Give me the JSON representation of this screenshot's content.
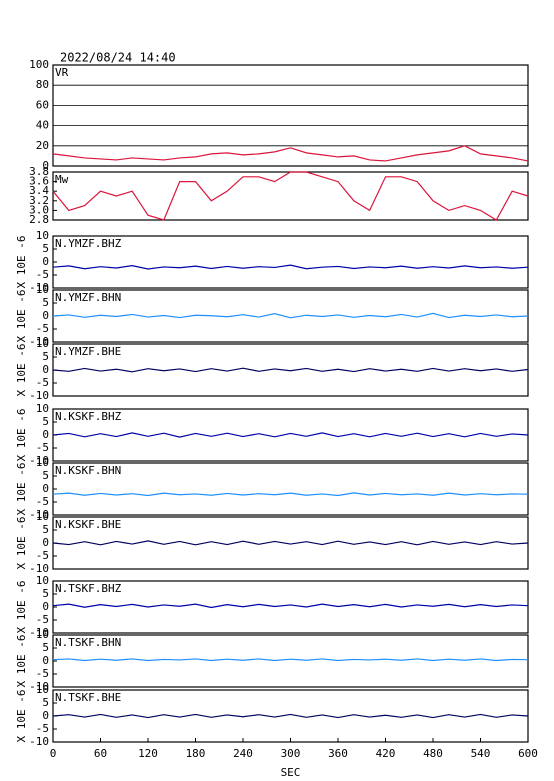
{
  "chart_data": [
    {
      "type": "line",
      "title": "2022/08/24 14:40",
      "x": [
        0,
        20,
        40,
        60,
        80,
        100,
        120,
        140,
        160,
        180,
        200,
        220,
        240,
        260,
        280,
        300,
        320,
        340,
        360,
        380,
        400,
        420,
        440,
        460,
        480,
        500,
        520,
        540,
        560,
        580,
        600
      ],
      "xlim": [
        0,
        600
      ],
      "ylim": [
        0,
        100
      ],
      "yticks": [
        0,
        20,
        40,
        60,
        80,
        100
      ],
      "grid": true,
      "series": [
        {
          "name": "VR",
          "color": "#dc143c",
          "values": [
            12,
            10,
            8,
            7,
            6,
            8,
            7,
            6,
            8,
            9,
            12,
            13,
            11,
            12,
            14,
            18,
            13,
            11,
            9,
            10,
            6,
            5,
            8,
            11,
            13,
            15,
            20,
            12,
            10,
            8,
            5
          ]
        }
      ]
    },
    {
      "type": "line",
      "x": [
        0,
        20,
        40,
        60,
        80,
        100,
        120,
        140,
        160,
        180,
        200,
        220,
        240,
        260,
        280,
        300,
        320,
        340,
        360,
        380,
        400,
        420,
        440,
        460,
        480,
        500,
        520,
        540,
        560,
        580,
        600
      ],
      "xlim": [
        0,
        600
      ],
      "ylim": [
        2.8,
        3.8
      ],
      "yticks": [
        {
          "value": 2.8,
          "label": "2.8"
        },
        {
          "value": 3,
          "label": "3.0"
        },
        3.2,
        3.4,
        3.6,
        3.8
      ],
      "grid": false,
      "series": [
        {
          "name": "Mw",
          "color": "#dc143c",
          "values": [
            3.4,
            3.0,
            3.1,
            3.4,
            3.3,
            3.4,
            2.9,
            2.8,
            3.6,
            3.6,
            3.2,
            3.4,
            3.7,
            3.7,
            3.6,
            3.8,
            3.8,
            3.7,
            3.6,
            3.2,
            3.0,
            3.7,
            3.7,
            3.6,
            3.2,
            3.0,
            3.1,
            3.0,
            2.8,
            3.4,
            3.3
          ]
        }
      ]
    },
    {
      "type": "line",
      "ylabel": "X 10E -6",
      "x": [
        0,
        20,
        40,
        60,
        80,
        100,
        120,
        140,
        160,
        180,
        200,
        220,
        240,
        260,
        280,
        300,
        320,
        340,
        360,
        380,
        400,
        420,
        440,
        460,
        480,
        500,
        520,
        540,
        560,
        580,
        600
      ],
      "xlim": [
        0,
        600
      ],
      "ylim": [
        -10,
        10
      ],
      "yticks": [
        -10,
        -5,
        0,
        5,
        10
      ],
      "grid": false,
      "series": [
        {
          "name": "N.YMZF.BHZ",
          "color": "#0000a8",
          "values": [
            -2,
            -1.5,
            -2.6,
            -1.8,
            -2.3,
            -1.4,
            -2.7,
            -1.9,
            -2.2,
            -1.6,
            -2.5,
            -1.7,
            -2.4,
            -1.8,
            -2.1,
            -1.2,
            -2.6,
            -2,
            -1.7,
            -2.5,
            -1.9,
            -2.2,
            -1.6,
            -2.4,
            -1.8,
            -2.3,
            -1.5,
            -2.2,
            -1.9,
            -2.4,
            -2
          ]
        }
      ]
    },
    {
      "type": "line",
      "ylabel": "X 10E -6",
      "x": [
        0,
        20,
        40,
        60,
        80,
        100,
        120,
        140,
        160,
        180,
        200,
        220,
        240,
        260,
        280,
        300,
        320,
        340,
        360,
        380,
        400,
        420,
        440,
        460,
        480,
        500,
        520,
        540,
        560,
        580,
        600
      ],
      "xlim": [
        0,
        600
      ],
      "ylim": [
        -10,
        10
      ],
      "yticks": [
        -10,
        -5,
        0,
        5,
        10
      ],
      "grid": false,
      "series": [
        {
          "name": "N.YMZF.BHN",
          "color": "#1e90ff",
          "values": [
            0,
            0.4,
            -0.5,
            0.3,
            -0.2,
            0.6,
            -0.4,
            0.2,
            -0.6,
            0.3,
            0.1,
            -0.3,
            0.5,
            -0.4,
            0.9,
            -0.7,
            0.3,
            -0.2,
            0.4,
            -0.5,
            0.2,
            -0.3,
            0.6,
            -0.4,
            1,
            -0.6,
            0.3,
            -0.2,
            0.4,
            -0.3,
            0
          ]
        }
      ]
    },
    {
      "type": "line",
      "ylabel": "X 10E -6",
      "x": [
        0,
        20,
        40,
        60,
        80,
        100,
        120,
        140,
        160,
        180,
        200,
        220,
        240,
        260,
        280,
        300,
        320,
        340,
        360,
        380,
        400,
        420,
        440,
        460,
        480,
        500,
        520,
        540,
        560,
        580,
        600
      ],
      "xlim": [
        0,
        600
      ],
      "ylim": [
        -10,
        10
      ],
      "yticks": [
        -10,
        -5,
        0,
        5,
        10
      ],
      "grid": false,
      "series": [
        {
          "name": "N.YMZF.BHE",
          "color": "#000060",
          "values": [
            0,
            -0.5,
            0.6,
            -0.4,
            0.3,
            -0.7,
            0.5,
            -0.3,
            0.4,
            -0.6,
            0.5,
            -0.4,
            0.7,
            -0.5,
            0.4,
            -0.3,
            0.6,
            -0.5,
            0.3,
            -0.6,
            0.5,
            -0.4,
            0.3,
            -0.5,
            0.6,
            -0.4,
            0.5,
            -0.3,
            0.4,
            -0.5,
            0.2
          ]
        }
      ]
    },
    {
      "type": "line",
      "ylabel": "X 10E -6",
      "x": [
        0,
        20,
        40,
        60,
        80,
        100,
        120,
        140,
        160,
        180,
        200,
        220,
        240,
        260,
        280,
        300,
        320,
        340,
        360,
        380,
        400,
        420,
        440,
        460,
        480,
        500,
        520,
        540,
        560,
        580,
        600
      ],
      "xlim": [
        0,
        600
      ],
      "ylim": [
        -10,
        10
      ],
      "yticks": [
        -10,
        -5,
        0,
        5,
        10
      ],
      "grid": false,
      "series": [
        {
          "name": "N.KSKF.BHZ",
          "color": "#0000a8",
          "values": [
            0,
            0.6,
            -0.7,
            0.5,
            -0.6,
            0.8,
            -0.5,
            0.7,
            -0.8,
            0.6,
            -0.5,
            0.7,
            -0.6,
            0.5,
            -0.7,
            0.6,
            -0.5,
            0.8,
            -0.6,
            0.5,
            -0.7,
            0.6,
            -0.5,
            0.7,
            -0.6,
            0.5,
            -0.7,
            0.6,
            -0.5,
            0.4,
            0
          ]
        }
      ]
    },
    {
      "type": "line",
      "ylabel": "X 10E -6",
      "x": [
        0,
        20,
        40,
        60,
        80,
        100,
        120,
        140,
        160,
        180,
        200,
        220,
        240,
        260,
        280,
        300,
        320,
        340,
        360,
        380,
        400,
        420,
        440,
        460,
        480,
        500,
        520,
        540,
        560,
        580,
        600
      ],
      "xlim": [
        0,
        600
      ],
      "ylim": [
        -10,
        10
      ],
      "yticks": [
        -10,
        -5,
        0,
        5,
        10
      ],
      "grid": false,
      "series": [
        {
          "name": "N.KSKF.BHN",
          "color": "#1e90ff",
          "values": [
            -2,
            -1.6,
            -2.4,
            -1.7,
            -2.3,
            -1.8,
            -2.5,
            -1.6,
            -2.2,
            -1.9,
            -2.4,
            -1.7,
            -2.3,
            -1.8,
            -2.2,
            -1.6,
            -2.4,
            -1.9,
            -2.5,
            -1.5,
            -2.3,
            -1.7,
            -2.2,
            -1.9,
            -2.4,
            -1.6,
            -2.3,
            -1.8,
            -2.2,
            -1.9,
            -2
          ]
        }
      ]
    },
    {
      "type": "line",
      "ylabel": "X 10E -6",
      "x": [
        0,
        20,
        40,
        60,
        80,
        100,
        120,
        140,
        160,
        180,
        200,
        220,
        240,
        260,
        280,
        300,
        320,
        340,
        360,
        380,
        400,
        420,
        440,
        460,
        480,
        500,
        520,
        540,
        560,
        580,
        600
      ],
      "xlim": [
        0,
        600
      ],
      "ylim": [
        -10,
        10
      ],
      "yticks": [
        -10,
        -5,
        0,
        5,
        10
      ],
      "grid": false,
      "series": [
        {
          "name": "N.KSKF.BHE",
          "color": "#000060",
          "values": [
            0,
            -0.6,
            0.5,
            -0.7,
            0.6,
            -0.4,
            0.8,
            -0.5,
            0.6,
            -0.7,
            0.5,
            -0.6,
            0.7,
            -0.5,
            0.6,
            -0.4,
            0.5,
            -0.6,
            0.7,
            -0.5,
            0.4,
            -0.6,
            0.5,
            -0.7,
            0.6,
            -0.5,
            0.4,
            -0.6,
            0.5,
            -0.4,
            0
          ]
        }
      ]
    },
    {
      "type": "line",
      "ylabel": "X 10E -6",
      "x": [
        0,
        20,
        40,
        60,
        80,
        100,
        120,
        140,
        160,
        180,
        200,
        220,
        240,
        260,
        280,
        300,
        320,
        340,
        360,
        380,
        400,
        420,
        440,
        460,
        480,
        500,
        520,
        540,
        560,
        580,
        600
      ],
      "xlim": [
        0,
        600
      ],
      "ylim": [
        -10,
        10
      ],
      "yticks": [
        -10,
        -5,
        0,
        5,
        10
      ],
      "grid": false,
      "series": [
        {
          "name": "N.TSKF.BHZ",
          "color": "#0000a8",
          "values": [
            0.5,
            1.1,
            -0.1,
            0.9,
            0.2,
            1,
            0,
            0.8,
            0.3,
            1.1,
            -0.2,
            0.9,
            0.1,
            1,
            0.2,
            0.8,
            0,
            1.1,
            0.2,
            0.9,
            0.1,
            1,
            0,
            0.8,
            0.3,
            1,
            0.1,
            0.9,
            0.2,
            0.8,
            0.5
          ]
        }
      ]
    },
    {
      "type": "line",
      "ylabel": "X 10E -6",
      "x": [
        0,
        20,
        40,
        60,
        80,
        100,
        120,
        140,
        160,
        180,
        200,
        220,
        240,
        260,
        280,
        300,
        320,
        340,
        360,
        380,
        400,
        420,
        440,
        460,
        480,
        500,
        520,
        540,
        560,
        580,
        600
      ],
      "xlim": [
        0,
        600
      ],
      "ylim": [
        -10,
        10
      ],
      "yticks": [
        -10,
        -5,
        0,
        5,
        10
      ],
      "grid": false,
      "series": [
        {
          "name": "N.TSKF.BHN",
          "color": "#1e90ff",
          "values": [
            0.5,
            0.8,
            0.2,
            0.7,
            0.3,
            0.8,
            0.2,
            0.6,
            0.4,
            0.8,
            0.2,
            0.7,
            0.3,
            0.8,
            0.2,
            0.7,
            0.3,
            0.8,
            0.2,
            0.6,
            0.4,
            0.7,
            0.3,
            0.8,
            0.2,
            0.7,
            0.3,
            0.8,
            0.2,
            0.6,
            0.5
          ]
        }
      ]
    },
    {
      "type": "line",
      "ylabel": "X 10E -6",
      "xlabel": "SEC",
      "x": [
        0,
        20,
        40,
        60,
        80,
        100,
        120,
        140,
        160,
        180,
        200,
        220,
        240,
        260,
        280,
        300,
        320,
        340,
        360,
        380,
        400,
        420,
        440,
        460,
        480,
        500,
        520,
        540,
        560,
        580,
        600
      ],
      "xlim": [
        0,
        600
      ],
      "xticks": [
        0,
        60,
        120,
        180,
        240,
        300,
        360,
        420,
        480,
        540,
        600
      ],
      "ylim": [
        -10,
        10
      ],
      "yticks": [
        -10,
        -5,
        0,
        5,
        10
      ],
      "grid": false,
      "series": [
        {
          "name": "N.TSKF.BHE",
          "color": "#000060",
          "values": [
            0,
            0.5,
            -0.4,
            0.6,
            -0.5,
            0.4,
            -0.6,
            0.5,
            -0.4,
            0.6,
            -0.5,
            0.4,
            -0.3,
            0.5,
            -0.4,
            0.6,
            -0.5,
            0.4,
            -0.6,
            0.5,
            -0.4,
            0.3,
            -0.5,
            0.4,
            -0.6,
            0.5,
            -0.4,
            0.6,
            -0.5,
            0.4,
            0
          ]
        }
      ]
    }
  ]
}
